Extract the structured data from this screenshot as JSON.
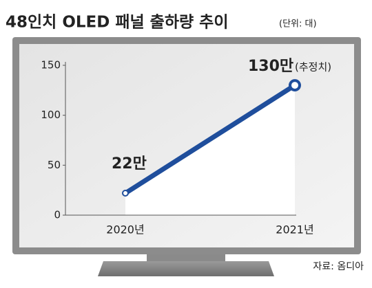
{
  "chart_data": {
    "type": "line",
    "title": "48인치 OLED 패널 출하량 추이",
    "subtitle": "(단위: 대)",
    "categories": [
      "2020년",
      "2021년"
    ],
    "values": [
      22,
      130
    ],
    "value_labels": [
      "22만",
      "130만"
    ],
    "annotation": "(추정치)",
    "color": "#1f4e9c",
    "ylim": [
      0,
      150
    ],
    "yticks": [
      0,
      50,
      100,
      150
    ],
    "grid": false,
    "source": "자료: 옴디아"
  }
}
